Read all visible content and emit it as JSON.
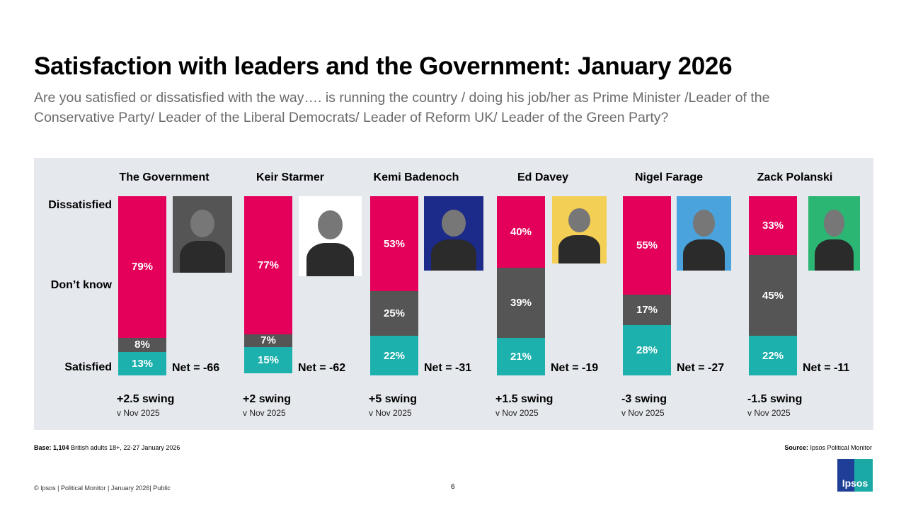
{
  "title": "Satisfaction with leaders and the Government: January 2026",
  "subtitle": "Are you satisfied or dissatisfied with the way…. is running the country / doing his job/her as Prime Minister /Leader of the Conservative Party/ Leader of the Liberal Democrats/ Leader of Reform UK/ Leader of the Green Party?",
  "colors": {
    "dissatisfied": "#e4005a",
    "dont_know": "#555555",
    "satisfied": "#1db1ad",
    "panel": "#e5e8ed"
  },
  "chart_data": {
    "type": "bar",
    "stacked": true,
    "row_labels": [
      "Dissatisfied",
      "Don’t know",
      "Satisfied"
    ],
    "categories": [
      "The Government",
      "Keir Starmer",
      "Kemi Badenoch",
      "Ed Davey",
      "Nigel Farage",
      "Zack Polanski"
    ],
    "series": [
      {
        "name": "Dissatisfied",
        "values": [
          79,
          77,
          53,
          40,
          55,
          33
        ]
      },
      {
        "name": "Don’t know",
        "values": [
          8,
          7,
          25,
          39,
          17,
          45
        ]
      },
      {
        "name": "Satisfied",
        "values": [
          13,
          15,
          22,
          21,
          28,
          22
        ]
      }
    ],
    "net": [
      "Net = -66",
      "Net = -62",
      "Net = -31",
      "Net = -19",
      "Net = -27",
      "Net = -11"
    ],
    "swing": [
      "+2.5 swing",
      "+2 swing",
      "+5 swing",
      "+1.5 swing",
      "-3 swing",
      "-1.5 swing"
    ],
    "swing_ref": "v Nov 2025",
    "photo_bg": [
      "#555555",
      "#ffffff",
      "#1c2a8a",
      "#f4cf55",
      "#4aa3dc",
      "#2bb673"
    ]
  },
  "footer": {
    "base_label": "Base:",
    "base_value": "1,104",
    "base_text": "British adults 18+, 22-27 January 2026",
    "source_label": "Source:",
    "source_text": "Ipsos Political Monitor",
    "copyright": "© Ipsos | Political Monitor | January 2026| Public",
    "page": "6",
    "logo": "Ipsos"
  }
}
